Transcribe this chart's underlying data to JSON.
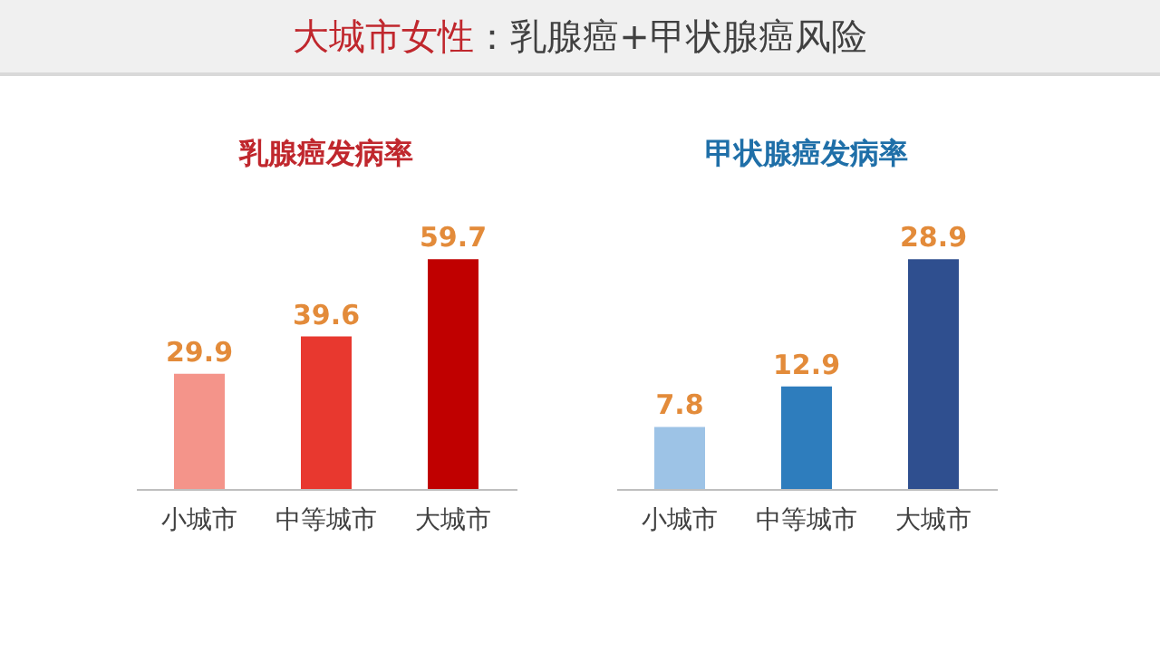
{
  "chart_data": [
    {
      "type": "bar",
      "title": "大城市女性：乳腺癌+甲状腺癌风险",
      "subtitle": "乳腺癌发病率",
      "categories": [
        "小城市",
        "中等城市",
        "大城市"
      ],
      "values": [
        29.9,
        39.6,
        59.7
      ],
      "colors": [
        "#f4948a",
        "#e8382f",
        "#c00000"
      ],
      "data_labels": true
    },
    {
      "type": "bar",
      "subtitle": "甲状腺癌发病率",
      "categories": [
        "小城市",
        "中等城市",
        "大城市"
      ],
      "values": [
        7.8,
        12.9,
        28.9
      ],
      "colors": [
        "#9dc3e6",
        "#2e7dbd",
        "#2f4f8f"
      ],
      "data_labels": true
    }
  ]
}
